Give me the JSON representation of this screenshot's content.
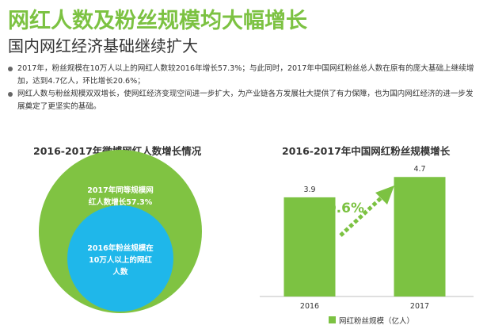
{
  "header": {
    "title": "网红人数及粉丝规模均大幅增长",
    "subtitle": "国内网红经济基础继续扩大"
  },
  "bullets": [
    "2017年，粉丝规模在10万人以上的网红人数较2016年增长57.3%；与此同时，2017年中国网红粉丝总人数在原有的庞大基础上继续增加，达到4.7亿人，环比增长20.6%；",
    "网红人数与粉丝规模双双增长，使网红经济变现空间进一步扩大，为产业链各方发展壮大提供了有力保障，也为国内网红经济的进一步发展奠定了更坚实的基础。"
  ],
  "colors": {
    "green": "#7cc242",
    "blue": "#1fb7ea",
    "outer_circle": "#80c342"
  },
  "chart_data": [
    {
      "type": "bubble",
      "title": "2016-2017年微博网红人数增长情况",
      "outer_label_lines": [
        "2017年同等规模网",
        "红人数增长57.3%"
      ],
      "inner_label_lines": [
        "2016年粉丝规模在",
        "10万人以上的网红",
        "人数"
      ],
      "growth_pct": 57.3
    },
    {
      "type": "bar",
      "title": "2016-2017年中国网红粉丝规模增长",
      "categories": [
        "2016",
        "2017"
      ],
      "series": [
        {
          "name": "网红粉丝规模（亿人）",
          "values": [
            3.9,
            4.7
          ]
        }
      ],
      "value_labels": [
        "3.9",
        "4.7"
      ],
      "annotation": "20.6%",
      "ylim": [
        0,
        5.3
      ]
    }
  ]
}
